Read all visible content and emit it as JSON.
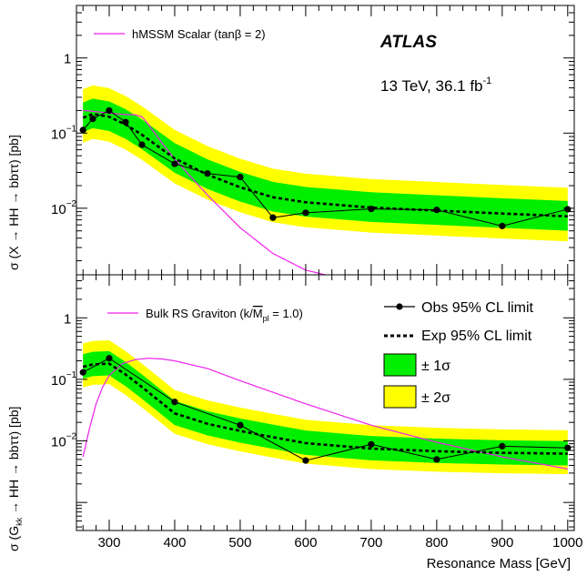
{
  "chart_data": [
    {
      "type": "line",
      "panel": "top",
      "yscale": "log",
      "xlim": [
        250,
        1010
      ],
      "ylim": [
        0.0013,
        5
      ],
      "ylabel": "σ (X → HH → bbττ) [pb]",
      "y_ticks": [
        {
          "value": 1,
          "label": "1"
        },
        {
          "value": 0.1,
          "label": "10",
          "exp": "−1"
        },
        {
          "value": 0.01,
          "label": "10",
          "exp": "−2"
        }
      ],
      "annotations": {
        "experiment": "ATLAS",
        "lumi_main": "13 TeV, 36.1 fb",
        "lumi_sup": "-1"
      },
      "theory_label": "hMSSM Scalar (tanβ = 2)",
      "observed": {
        "x": [
          260,
          275,
          300,
          325,
          350,
          400,
          450,
          500,
          550,
          600,
          700,
          800,
          900,
          1000
        ],
        "y": [
          0.11,
          0.155,
          0.2,
          0.14,
          0.07,
          0.039,
          0.029,
          0.026,
          0.0075,
          0.0087,
          0.0098,
          0.0095,
          0.0058,
          0.0097
        ]
      },
      "expected": {
        "x": [
          260,
          275,
          300,
          325,
          350,
          400,
          450,
          500,
          550,
          600,
          700,
          800,
          900,
          1000
        ],
        "y": [
          0.16,
          0.18,
          0.165,
          0.13,
          0.095,
          0.046,
          0.028,
          0.019,
          0.014,
          0.012,
          0.0102,
          0.0093,
          0.0085,
          0.0078
        ]
      },
      "theory": {
        "x": [
          260,
          275,
          300,
          320,
          340,
          350,
          360,
          380,
          400,
          450,
          500,
          550,
          600,
          630
        ],
        "y": [
          0.2,
          0.195,
          0.185,
          0.178,
          0.175,
          0.165,
          0.13,
          0.075,
          0.045,
          0.015,
          0.0055,
          0.0025,
          0.0015,
          0.0013
        ]
      }
    },
    {
      "type": "line",
      "panel": "bottom",
      "yscale": "log",
      "xlim": [
        250,
        1010
      ],
      "ylim": [
        0.00035,
        5
      ],
      "xlabel": "Resonance Mass [GeV]",
      "ylabel": "σ (G",
      "ylabel_sub": "kk",
      "ylabel_tail": " → HH → bbττ) [pb]",
      "x_ticks": [
        300,
        400,
        500,
        600,
        700,
        800,
        900,
        1000
      ],
      "y_ticks": [
        {
          "value": 1,
          "label": "1"
        },
        {
          "value": 0.1,
          "label": "10",
          "exp": "−1"
        },
        {
          "value": 0.01,
          "label": "10",
          "exp": "−2"
        }
      ],
      "theory_label": "Bulk RS Graviton (k/",
      "theory_label_m": "M",
      "theory_label_sub": "pl",
      "theory_label_tail": " = 1.0)",
      "legend": {
        "position": "top-right",
        "obs": "Obs 95% CL limit",
        "exp": "Exp 95% CL limit",
        "one_sigma": "± 1σ",
        "two_sigma": "± 2σ"
      },
      "observed": {
        "x": [
          260,
          300,
          400,
          500,
          600,
          700,
          800,
          900,
          1000
        ],
        "y": [
          0.13,
          0.22,
          0.043,
          0.018,
          0.0048,
          0.0088,
          0.005,
          0.0082,
          0.0077
        ]
      },
      "expected": {
        "x": [
          260,
          275,
          300,
          325,
          350,
          400,
          450,
          500,
          550,
          600,
          700,
          800,
          900,
          1000
        ],
        "y": [
          0.16,
          0.175,
          0.18,
          0.12,
          0.075,
          0.028,
          0.019,
          0.0145,
          0.0115,
          0.0092,
          0.0075,
          0.0068,
          0.0064,
          0.0062
        ]
      },
      "theory": {
        "x": [
          260,
          270,
          280,
          290,
          300,
          320,
          340,
          360,
          380,
          400,
          450,
          500,
          600,
          700,
          800,
          900,
          1000
        ],
        "y": [
          0.0055,
          0.016,
          0.04,
          0.075,
          0.115,
          0.18,
          0.21,
          0.22,
          0.215,
          0.2,
          0.15,
          0.095,
          0.04,
          0.018,
          0.0095,
          0.0055,
          0.0035
        ]
      }
    }
  ],
  "colors": {
    "one_sigma": "#00ee00",
    "two_sigma": "#ffff00",
    "theory": "#ee22ee",
    "observed": "#000000",
    "expected": "#000000"
  }
}
